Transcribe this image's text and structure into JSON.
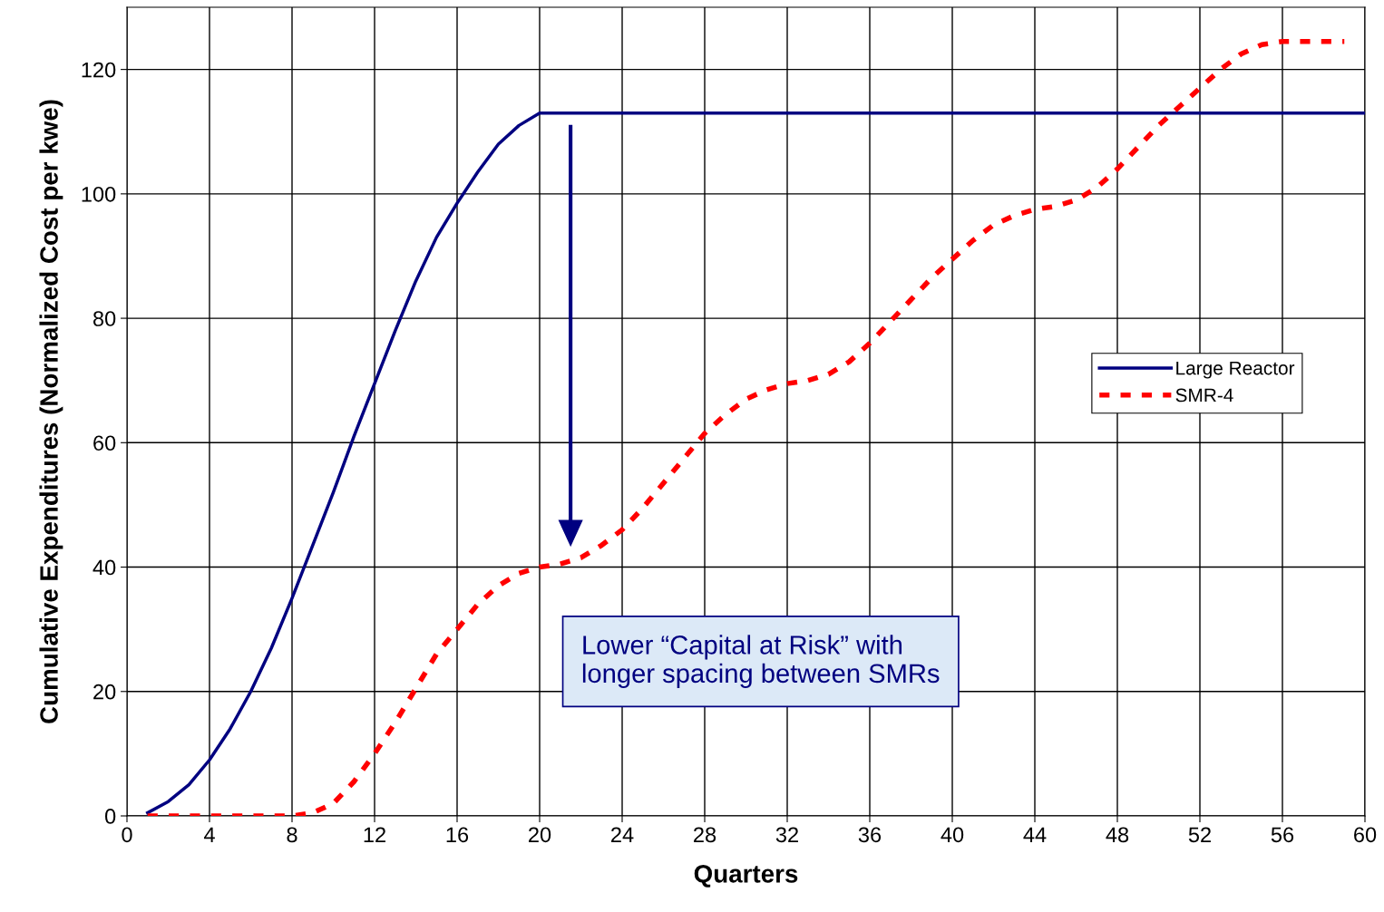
{
  "chart_data": {
    "type": "line",
    "xlabel": "Quarters",
    "ylabel": "Cumulative Expenditures (Normalized Cost per kwe)",
    "xlim": [
      0,
      60
    ],
    "xticks": [
      0,
      4,
      8,
      12,
      16,
      20,
      24,
      28,
      32,
      36,
      40,
      44,
      48,
      52,
      56,
      60
    ],
    "ylim": [
      0,
      130
    ],
    "yticks": [
      0,
      20,
      40,
      60,
      80,
      100,
      120
    ],
    "grid": true,
    "legend": "right",
    "marker": "none",
    "series": [
      {
        "name": "Large Reactor",
        "color": "#000080",
        "line_style": "solid",
        "x": [
          1,
          2,
          3,
          4,
          5,
          6,
          7,
          8,
          9,
          10,
          11,
          12,
          13,
          14,
          15,
          16,
          17,
          18,
          19,
          20,
          60
        ],
        "values": [
          0.5,
          2.3,
          5,
          9,
          14,
          20,
          27,
          35,
          43.5,
          52,
          61,
          69.5,
          78,
          86,
          93,
          98.5,
          103.5,
          108,
          111,
          113,
          113
        ]
      },
      {
        "name": "SMR-4",
        "color": "#ff0000",
        "line_style": "dashed",
        "x": [
          1,
          2,
          3,
          4,
          5,
          6,
          7,
          8,
          9,
          10,
          11,
          12,
          13,
          14,
          15,
          16,
          17,
          18,
          19,
          20,
          21,
          22,
          23,
          24,
          25,
          26,
          27,
          28,
          29,
          30,
          31,
          32,
          33,
          34,
          35,
          36,
          37,
          38,
          39,
          40,
          41,
          42,
          43,
          44,
          45,
          46,
          47,
          48,
          49,
          50,
          51,
          52,
          53,
          54,
          55,
          56,
          57,
          58,
          59
        ],
        "values": [
          0,
          0,
          0,
          0,
          0,
          0,
          0,
          0,
          0.5,
          2,
          5.5,
          10,
          15,
          20.5,
          26,
          30,
          34,
          37,
          39,
          40,
          40.5,
          41.5,
          43.5,
          46,
          49.5,
          53.5,
          57.5,
          61.5,
          64.5,
          67,
          68.5,
          69.5,
          70,
          71,
          73,
          76,
          79.5,
          83,
          86.5,
          89.5,
          92.5,
          95,
          96.5,
          97.5,
          98,
          99,
          101,
          104,
          107.5,
          111,
          114,
          117,
          120,
          122.5,
          124,
          124.5,
          124.5,
          124.5,
          124.5
        ]
      }
    ],
    "annotations": [
      "Lower “Capital at Risk” with\nlonger spacing between SMRs"
    ]
  }
}
